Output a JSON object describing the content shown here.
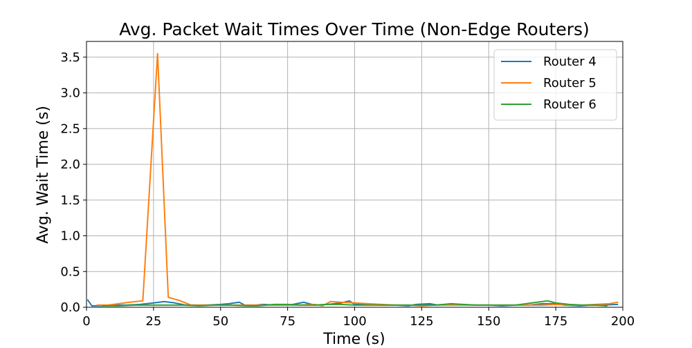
{
  "chart_data": {
    "type": "line",
    "title": "Avg. Packet Wait Times Over Time (Non-Edge Routers)",
    "xlabel": "Time (s)",
    "ylabel": "Avg. Wait Time (s)",
    "xlim": [
      0,
      200
    ],
    "ylim": [
      0,
      3.72
    ],
    "xticks": [
      0,
      25,
      50,
      75,
      100,
      125,
      150,
      175,
      200
    ],
    "yticks": [
      0.0,
      0.5,
      1.0,
      1.5,
      2.0,
      2.5,
      3.0,
      3.5
    ],
    "xtick_labels": [
      "0",
      "25",
      "50",
      "75",
      "100",
      "125",
      "150",
      "175",
      "200"
    ],
    "ytick_labels": [
      "0.0",
      "0.5",
      "1.0",
      "1.5",
      "2.0",
      "2.5",
      "3.0",
      "3.5"
    ],
    "grid": true,
    "legend_position": "top-right",
    "series": [
      {
        "name": "Router 4",
        "color": "#1f77b4",
        "x": [
          0.5,
          2,
          5,
          10,
          15,
          20,
          25,
          29,
          33,
          37,
          41,
          45,
          50,
          53,
          57,
          59,
          63,
          66,
          70,
          75,
          77,
          81,
          85,
          90,
          95,
          98,
          100,
          105,
          110,
          115,
          120,
          123,
          128,
          131,
          135,
          140,
          145,
          150,
          155,
          160,
          165,
          170,
          175,
          178,
          184,
          188,
          192,
          198
        ],
        "y": [
          0.1,
          0.02,
          0.02,
          0.03,
          0.03,
          0.04,
          0.06,
          0.08,
          0.06,
          0.03,
          0.03,
          0.03,
          0.04,
          0.05,
          0.07,
          0.03,
          0.03,
          0.04,
          0.03,
          0.03,
          0.04,
          0.07,
          0.03,
          0.04,
          0.06,
          0.09,
          0.04,
          0.04,
          0.03,
          0.03,
          0.02,
          0.04,
          0.05,
          0.03,
          0.04,
          0.04,
          0.03,
          0.03,
          0.02,
          0.03,
          0.03,
          0.05,
          0.05,
          0.03,
          0.02,
          0.03,
          0.03,
          0.04
        ]
      },
      {
        "name": "Router 5",
        "color": "#ff7f0e",
        "x": [
          4,
          8,
          12,
          16,
          21,
          26.5,
          30.5,
          35,
          39,
          45,
          50,
          55,
          60,
          65,
          70,
          75,
          79,
          85,
          88,
          91,
          95,
          100,
          105,
          110,
          115,
          120,
          125,
          130,
          135,
          140,
          145,
          150,
          155,
          160,
          165,
          170,
          175,
          180,
          185,
          190,
          195,
          198
        ],
        "y": [
          0.03,
          0.03,
          0.05,
          0.07,
          0.09,
          3.55,
          0.14,
          0.09,
          0.03,
          0.03,
          0.03,
          0.03,
          0.03,
          0.03,
          0.03,
          0.03,
          0.03,
          0.04,
          0.02,
          0.08,
          0.07,
          0.06,
          0.05,
          0.04,
          0.03,
          0.03,
          0.02,
          0.03,
          0.03,
          0.03,
          0.03,
          0.03,
          0.03,
          0.03,
          0.03,
          0.03,
          0.04,
          0.03,
          0.03,
          0.04,
          0.05,
          0.07
        ]
      },
      {
        "name": "Router 6",
        "color": "#2ca02c",
        "x": [
          6,
          12,
          18,
          24,
          30,
          36,
          42,
          48,
          54,
          60,
          64,
          67,
          70,
          75,
          80,
          85,
          90,
          95,
          100,
          110,
          120,
          130,
          136,
          140,
          145,
          150,
          160,
          166,
          172,
          175,
          180,
          185,
          190,
          194
        ],
        "y": [
          0.02,
          0.02,
          0.03,
          0.03,
          0.03,
          0.03,
          0.02,
          0.03,
          0.03,
          0.02,
          0.02,
          0.03,
          0.04,
          0.04,
          0.03,
          0.03,
          0.04,
          0.04,
          0.03,
          0.03,
          0.03,
          0.03,
          0.05,
          0.04,
          0.03,
          0.03,
          0.03,
          0.06,
          0.09,
          0.06,
          0.04,
          0.03,
          0.03,
          0.02
        ]
      }
    ]
  }
}
